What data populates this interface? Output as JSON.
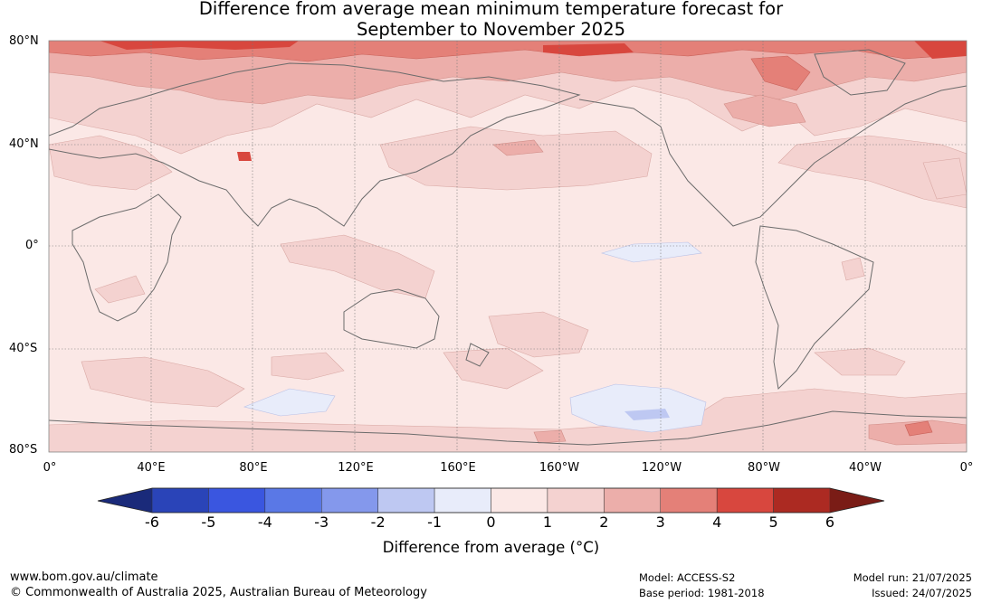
{
  "title_line1": "Difference from average mean minimum temperature forecast for",
  "title_line2": "September to November 2025",
  "lat_labels": [
    "80°N",
    "40°N",
    "0°",
    "40°S",
    "80°S"
  ],
  "lon_labels": [
    "0°",
    "40°E",
    "80°E",
    "120°E",
    "160°E",
    "160°W",
    "120°W",
    "80°W",
    "40°W",
    "0°"
  ],
  "colorbar": {
    "ticks": [
      "-6",
      "-5",
      "-4",
      "-3",
      "-2",
      "-1",
      "0",
      "1",
      "2",
      "3",
      "4",
      "5",
      "6"
    ],
    "label": "Difference from average (°C)",
    "extend_low_color": "#1a2a7a",
    "extend_high_color": "#7a1c16",
    "colors": [
      "#2a44b8",
      "#3a56e0",
      "#5a78e6",
      "#8498ec",
      "#bec8f2",
      "#e8ecfa",
      "#fbe8e6",
      "#f4d2d0",
      "#ecaeaa",
      "#e48078",
      "#d8473e",
      "#ac2a22"
    ]
  },
  "footer": {
    "url": "www.bom.gov.au/climate",
    "copyright": "© Commonwealth of Australia 2025, Australian Bureau of Meteorology",
    "model": "Model: ACCESS-S2",
    "base_period": "Base period: 1981-2018",
    "model_run": "Model run: 21/07/2025",
    "issued": "Issued: 24/07/2025"
  }
}
